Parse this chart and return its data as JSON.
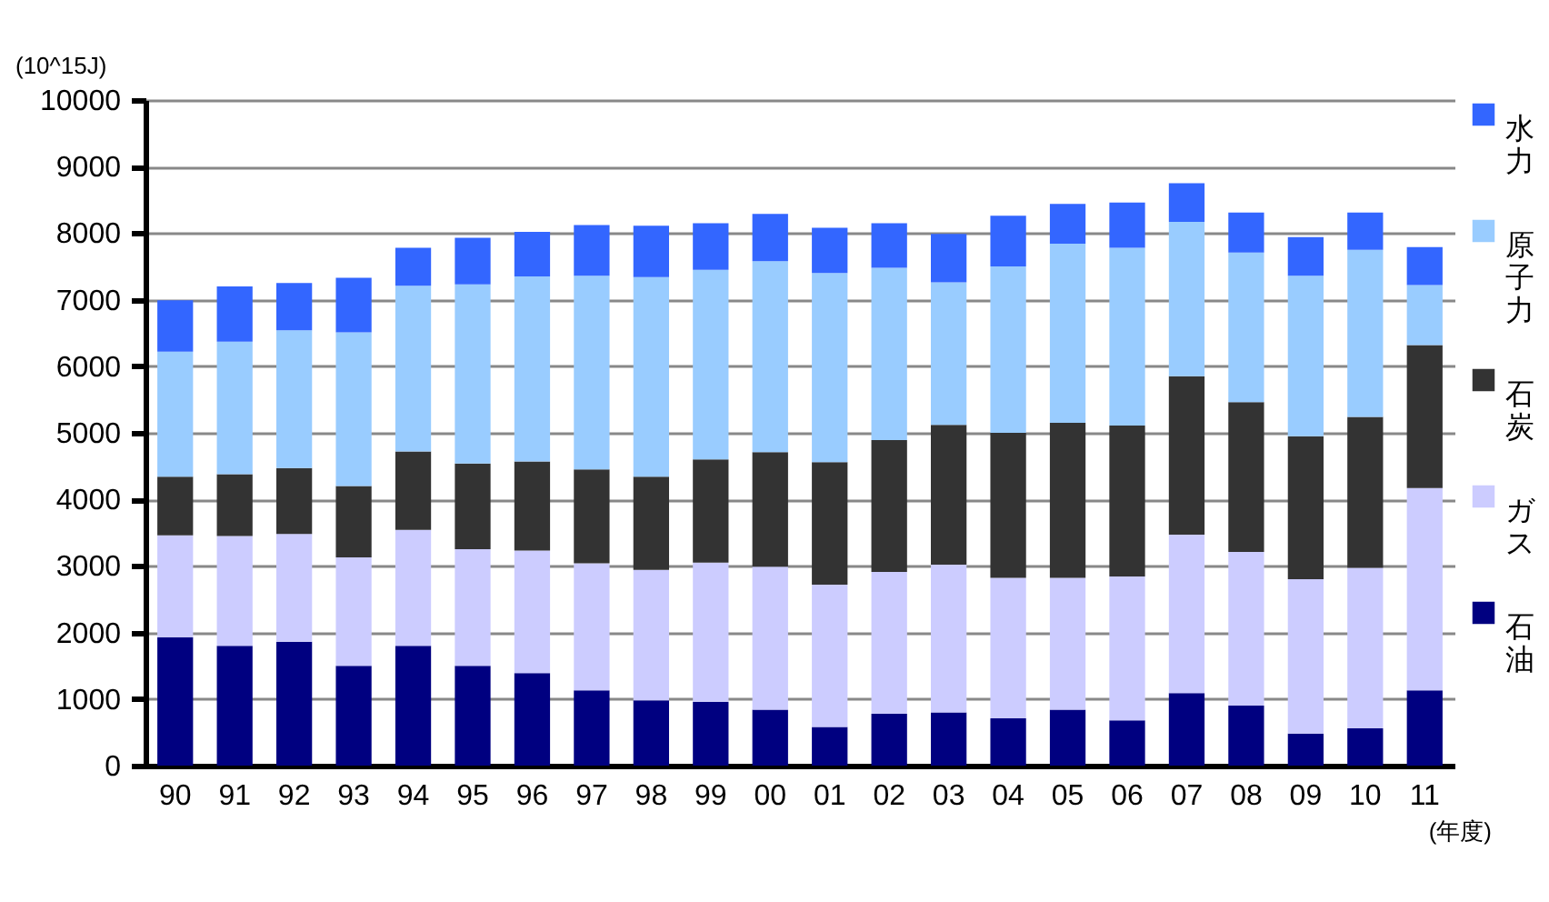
{
  "chart_data": {
    "type": "bar",
    "stacked": true,
    "ylabel": "(10^15J)",
    "xlabel": "(年度)",
    "categories": [
      "90",
      "91",
      "92",
      "93",
      "94",
      "95",
      "96",
      "97",
      "98",
      "99",
      "00",
      "01",
      "02",
      "03",
      "04",
      "05",
      "06",
      "07",
      "08",
      "09",
      "10",
      "11"
    ],
    "ylim": [
      0,
      10000
    ],
    "yticks": [
      0,
      1000,
      2000,
      3000,
      4000,
      5000,
      6000,
      7000,
      8000,
      9000,
      10000
    ],
    "grid": "y",
    "legend": "right",
    "series": [
      {
        "name": "石油",
        "color": "#000080",
        "values": [
          1930,
          1800,
          1860,
          1500,
          1800,
          1500,
          1390,
          1130,
          980,
          960,
          840,
          580,
          780,
          800,
          710,
          840,
          680,
          1090,
          900,
          480,
          560,
          1130
        ]
      },
      {
        "name": "ガス",
        "color": "#ccccff",
        "values": [
          1530,
          1650,
          1620,
          1630,
          1740,
          1750,
          1840,
          1910,
          1960,
          2090,
          2150,
          2140,
          2130,
          2220,
          2110,
          1980,
          2160,
          2380,
          2310,
          2320,
          2410,
          3040
        ]
      },
      {
        "name": "石炭",
        "color": "#333333",
        "values": [
          880,
          930,
          990,
          1070,
          1180,
          1290,
          1340,
          1410,
          1400,
          1550,
          1720,
          1840,
          1980,
          2100,
          2180,
          2330,
          2270,
          2380,
          2250,
          2150,
          2270,
          2150
        ]
      },
      {
        "name": "原子力",
        "color": "#99ccff",
        "values": [
          1880,
          1990,
          2070,
          2310,
          2490,
          2690,
          2780,
          2910,
          3000,
          2850,
          2870,
          2840,
          2590,
          2140,
          2500,
          2690,
          2670,
          2320,
          2250,
          2410,
          2510,
          900
        ]
      },
      {
        "name": "水力",
        "color": "#3366ff",
        "values": [
          770,
          830,
          710,
          820,
          570,
          700,
          670,
          760,
          770,
          700,
          710,
          680,
          670,
          730,
          760,
          600,
          680,
          580,
          600,
          580,
          560,
          570
        ]
      }
    ]
  }
}
